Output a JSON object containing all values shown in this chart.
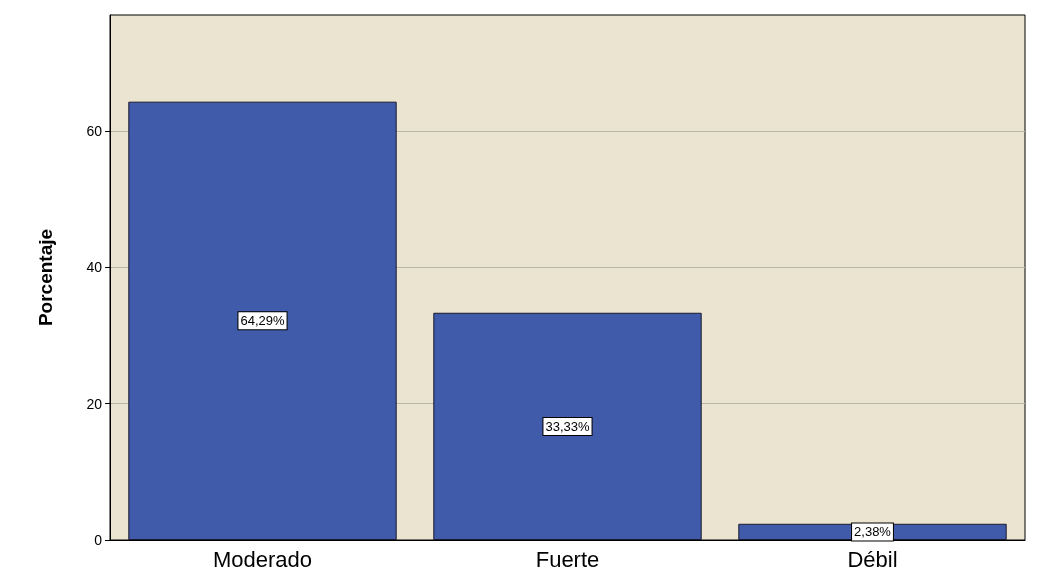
{
  "chart_data": {
    "type": "bar",
    "ylabel": "Porcentaje",
    "categories": [
      "Moderado",
      "Fuerte",
      "Débil"
    ],
    "values": [
      64.29,
      33.33,
      2.38
    ],
    "value_labels": [
      "64,29%",
      "33,33%",
      "2,38%"
    ],
    "color": "#3f5ba9",
    "ylim": [
      0,
      77
    ],
    "yticks": [
      0,
      20,
      40,
      60
    ],
    "grid": "y"
  }
}
